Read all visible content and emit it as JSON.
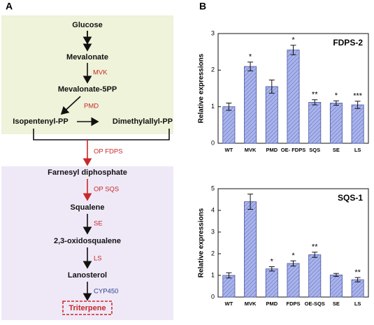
{
  "figure": {
    "panel_labels": [
      "A",
      "B"
    ]
  },
  "diagram": {
    "nodes": [
      "Glucose",
      "Mevalonate",
      "Mevalonate-5PP",
      "Isopentenyl-PP",
      "Dimethylallyl-PP",
      "Farnesyl diphosphate",
      "Squalene",
      "2,3-oxidosqualene",
      "Lanosterol",
      "Triterpene"
    ],
    "enzymes": [
      {
        "label": "MVK",
        "color": "#c8282a"
      },
      {
        "label": "PMD",
        "color": "#c8282a"
      },
      {
        "label": "OP FDPS",
        "color": "#c8282a"
      },
      {
        "label": "OP SQS",
        "color": "#c8282a"
      },
      {
        "label": "SE",
        "color": "#c8282a"
      },
      {
        "label": "LS",
        "color": "#c8282a"
      },
      {
        "label": "CYP450",
        "color": "#2c3e8c"
      }
    ]
  },
  "chart_data": [
    {
      "type": "bar",
      "title": "FDPS-2",
      "y_label": "Relative expressions",
      "categories": [
        "WT",
        "MVK",
        "PMD",
        "OE- FDPS",
        "SQS",
        "SE",
        "LS"
      ],
      "values": [
        1.0,
        2.1,
        1.55,
        2.55,
        1.12,
        1.1,
        1.05
      ],
      "errors": [
        0.1,
        0.12,
        0.18,
        0.13,
        0.07,
        0.06,
        0.1
      ],
      "significance": [
        null,
        "*",
        null,
        "*",
        "**",
        "*",
        "***"
      ],
      "color": "#a9b4ec",
      "ylim": [
        0,
        3
      ],
      "yticks": [
        0,
        1,
        2,
        3
      ],
      "grid": false
    },
    {
      "type": "bar",
      "title": "SQS-1",
      "y_label": "Relative expressions",
      "categories": [
        "WT",
        "MVK",
        "PMD",
        "FDPS",
        "OE-SQS",
        "SE",
        "LS"
      ],
      "values": [
        1.0,
        4.4,
        1.3,
        1.55,
        1.95,
        1.02,
        0.8
      ],
      "errors": [
        0.12,
        0.35,
        0.1,
        0.12,
        0.12,
        0.07,
        0.1
      ],
      "significance": [
        null,
        null,
        "*",
        "*",
        "**",
        null,
        "**"
      ],
      "color": "#a9b4ec",
      "ylim": [
        0,
        5
      ],
      "yticks": [
        0,
        1,
        2,
        3,
        4,
        5
      ],
      "grid": false
    }
  ]
}
